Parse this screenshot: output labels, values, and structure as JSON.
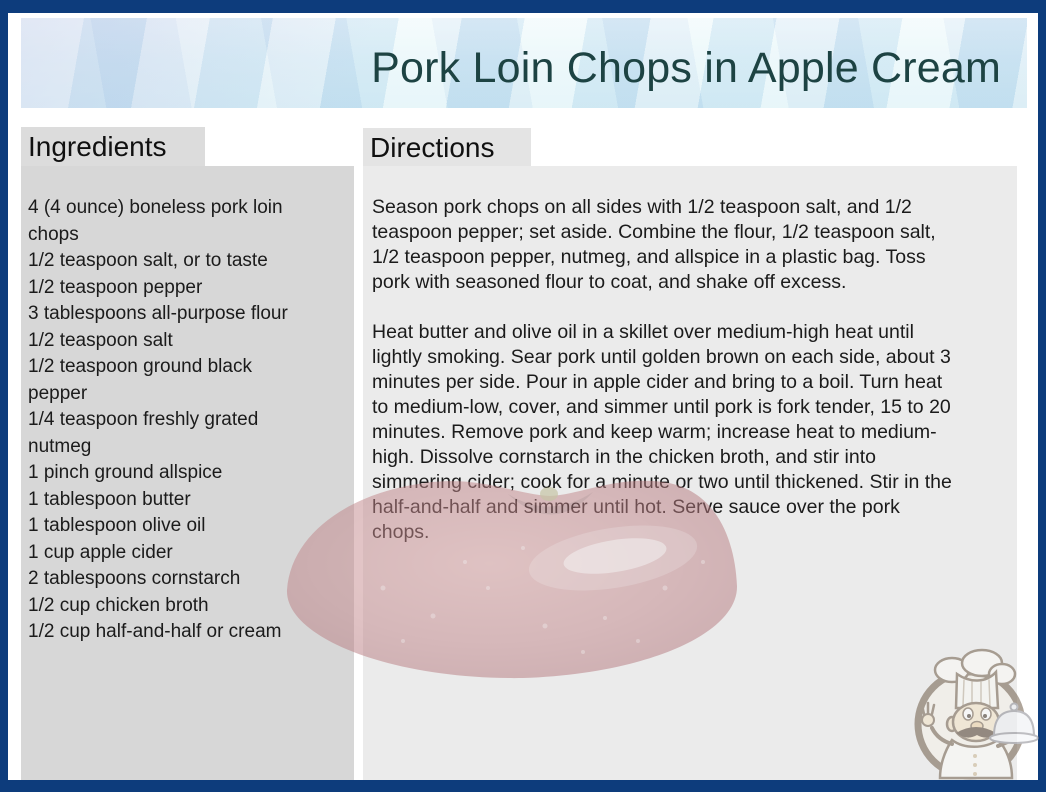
{
  "header": {
    "title": "Pork Loin Chops in Apple Cream"
  },
  "ingredients": {
    "heading": "Ingredients",
    "items": [
      "4 (4 ounce) boneless pork loin\nchops",
      "1/2 teaspoon salt, or to taste",
      "1/2 teaspoon pepper",
      "3 tablespoons all-purpose flour",
      "1/2 teaspoon salt",
      "1/2 teaspoon ground black\npepper",
      "1/4 teaspoon freshly grated\nnutmeg",
      "1 pinch ground allspice",
      "1 tablespoon butter",
      "1 tablespoon olive oil",
      "1 cup apple cider",
      "2 tablespoons cornstarch",
      "1/2 cup chicken broth",
      "1/2 cup half-and-half or cream"
    ]
  },
  "directions": {
    "heading": "Directions",
    "paragraphs": [
      "Season pork chops on all sides with 1/2 teaspoon salt, and 1/2\nteaspoon pepper; set aside. Combine the flour, 1/2 teaspoon salt,\n1/2 teaspoon pepper, nutmeg, and allspice in a plastic bag. Toss\npork with seasoned flour to coat, and shake off excess.",
      "Heat butter and olive oil in a skillet over medium-high heat until\nlightly smoking. Sear pork until golden brown on each side, about 3\nminutes per side. Pour in apple cider and bring to a boil. Turn heat\nto medium-low, cover, and simmer until pork is fork tender, 15 to 20\nminutes. Remove pork and keep warm; increase heat to medium-\nhigh. Dissolve cornstarch in the chicken broth, and stir into\nsimmering cider; cook for a minute or two until thickened. Stir in the\nhalf-and-half and simmer until hot. Serve sauce over the pork\nchops."
    ]
  },
  "decorations": {
    "apple_watermark": "faded red apple photo watermark",
    "chef_logo": "cartoon chef with tall hat holding covered platter in a circle"
  },
  "colors": {
    "frame_border": "#0d3c7c",
    "banner_light": "#e8f7fa",
    "banner_dark": "#c6e9f1",
    "title_text": "#1d4343",
    "ingredients_bg": "#d7d7d7",
    "ingredients_heading_bg": "#dcdcdc",
    "directions_bg": "#ebebeb",
    "directions_heading_bg": "#e4e4e4",
    "body_text": "#1b1b1b",
    "apple_red": "#c2868a"
  }
}
